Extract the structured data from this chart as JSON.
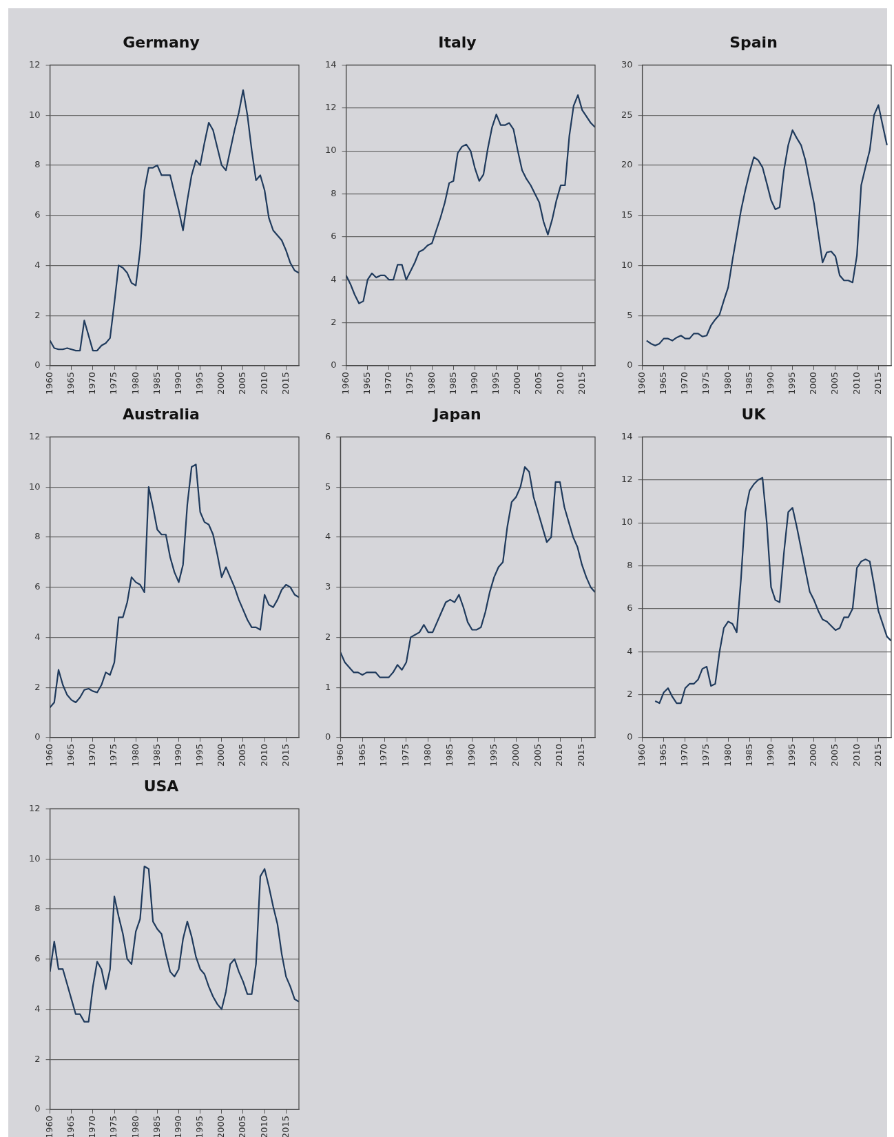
{
  "chart_data": [
    {
      "type": "line",
      "title": "Germany",
      "color": "#1f3a5c",
      "marker": "none",
      "grid": "y",
      "xlim": [
        1960,
        2018
      ],
      "xticks": [
        1960,
        1965,
        1970,
        1975,
        1980,
        1985,
        1990,
        1995,
        2000,
        2005,
        2010,
        2015
      ],
      "ylim": [
        0,
        12
      ],
      "yticks": [
        0,
        2,
        4,
        6,
        8,
        10,
        12
      ],
      "x": [
        1960,
        1961,
        1962,
        1963,
        1964,
        1965,
        1966,
        1967,
        1968,
        1969,
        1970,
        1971,
        1972,
        1973,
        1974,
        1975,
        1976,
        1977,
        1978,
        1979,
        1980,
        1981,
        1982,
        1983,
        1984,
        1985,
        1986,
        1987,
        1988,
        1989,
        1990,
        1991,
        1992,
        1993,
        1994,
        1995,
        1996,
        1997,
        1998,
        1999,
        2000,
        2001,
        2002,
        2003,
        2004,
        2005,
        2006,
        2007,
        2008,
        2009,
        2010,
        2011,
        2012,
        2013,
        2014,
        2015,
        2016,
        2017,
        2018
      ],
      "values": [
        1.0,
        0.7,
        0.65,
        0.65,
        0.7,
        0.65,
        0.6,
        0.6,
        1.8,
        1.2,
        0.6,
        0.6,
        0.8,
        0.9,
        1.1,
        2.5,
        4.0,
        3.9,
        3.7,
        3.3,
        3.2,
        4.6,
        7.0,
        7.9,
        7.9,
        8.0,
        7.6,
        7.6,
        7.6,
        6.9,
        6.2,
        5.4,
        6.6,
        7.6,
        8.2,
        8.0,
        8.9,
        9.7,
        9.4,
        8.7,
        8.0,
        7.8,
        8.6,
        9.4,
        10.1,
        11.0,
        10.0,
        8.6,
        7.4,
        7.6,
        7.0,
        5.9,
        5.4,
        5.2,
        5.0,
        4.6,
        4.1,
        3.8,
        3.7
      ]
    },
    {
      "type": "line",
      "title": "Italy",
      "color": "#1f3a5c",
      "marker": "none",
      "grid": "y",
      "xlim": [
        1960,
        2018
      ],
      "xticks": [
        1960,
        1965,
        1970,
        1975,
        1980,
        1985,
        1990,
        1995,
        2000,
        2005,
        2010,
        2015
      ],
      "ylim": [
        0,
        14
      ],
      "yticks": [
        0,
        2,
        4,
        6,
        8,
        10,
        12,
        14
      ],
      "x": [
        1960,
        1961,
        1962,
        1963,
        1964,
        1965,
        1966,
        1967,
        1968,
        1969,
        1970,
        1971,
        1972,
        1973,
        1974,
        1975,
        1976,
        1977,
        1978,
        1979,
        1980,
        1981,
        1982,
        1983,
        1984,
        1985,
        1986,
        1987,
        1988,
        1989,
        1990,
        1991,
        1992,
        1993,
        1994,
        1995,
        1996,
        1997,
        1998,
        1999,
        2000,
        2001,
        2002,
        2003,
        2004,
        2005,
        2006,
        2007,
        2008,
        2009,
        2010,
        2011,
        2012,
        2013,
        2014,
        2015,
        2016,
        2017,
        2018
      ],
      "values": [
        4.2,
        3.8,
        3.3,
        2.9,
        3.0,
        4.0,
        4.3,
        4.1,
        4.2,
        4.2,
        4.0,
        4.0,
        4.7,
        4.7,
        4.0,
        4.4,
        4.8,
        5.3,
        5.4,
        5.6,
        5.7,
        6.3,
        6.9,
        7.6,
        8.5,
        8.6,
        9.9,
        10.2,
        10.3,
        10.0,
        9.2,
        8.6,
        8.9,
        10.1,
        11.1,
        11.7,
        11.2,
        11.2,
        11.3,
        11.0,
        10.0,
        9.1,
        8.7,
        8.4,
        8.0,
        7.6,
        6.7,
        6.1,
        6.8,
        7.7,
        8.4,
        8.4,
        10.7,
        12.1,
        12.6,
        11.9,
        11.6,
        11.3,
        11.1
      ]
    },
    {
      "type": "line",
      "title": "Spain",
      "color": "#1f3a5c",
      "marker": "none",
      "grid": "y",
      "xlim": [
        1960,
        2018
      ],
      "xticks": [
        1960,
        1965,
        1970,
        1975,
        1980,
        1985,
        1990,
        1995,
        2000,
        2005,
        2010,
        2015
      ],
      "ylim": [
        0,
        30
      ],
      "yticks": [
        0,
        5,
        10,
        15,
        20,
        25,
        30
      ],
      "x": [
        1961,
        1962,
        1963,
        1964,
        1965,
        1966,
        1967,
        1968,
        1969,
        1970,
        1971,
        1972,
        1973,
        1974,
        1975,
        1976,
        1977,
        1978,
        1979,
        1980,
        1981,
        1982,
        1983,
        1984,
        1985,
        1986,
        1987,
        1988,
        1989,
        1990,
        1991,
        1992,
        1993,
        1994,
        1995,
        1996,
        1997,
        1998,
        1999,
        2000,
        2001,
        2002,
        2003,
        2004,
        2005,
        2006,
        2007,
        2008,
        2009,
        2010,
        2011,
        2012,
        2013,
        2014,
        2015,
        2016,
        2017
      ],
      "values": [
        2.5,
        2.2,
        2.0,
        2.2,
        2.7,
        2.7,
        2.5,
        2.8,
        3.0,
        2.7,
        2.7,
        3.2,
        3.2,
        2.9,
        3.0,
        4.0,
        4.6,
        5.1,
        6.5,
        7.8,
        10.5,
        13.0,
        15.5,
        17.5,
        19.3,
        20.8,
        20.5,
        19.8,
        18.2,
        16.5,
        15.6,
        15.8,
        19.5,
        22.0,
        23.5,
        22.7,
        22.0,
        20.5,
        18.3,
        16.2,
        13.2,
        10.3,
        11.3,
        11.4,
        10.9,
        9.0,
        8.5,
        8.5,
        8.3,
        11.0,
        18.0,
        19.8,
        21.5,
        25.0,
        26.0,
        24.0,
        22.0
      ]
    },
    {
      "type": "line",
      "title": "Australia",
      "color": "#1f3a5c",
      "marker": "none",
      "grid": "y",
      "xlim": [
        1960,
        2018
      ],
      "xticks": [
        1960,
        1965,
        1970,
        1975,
        1980,
        1985,
        1990,
        1995,
        2000,
        2005,
        2010,
        2015
      ],
      "ylim": [
        0,
        12
      ],
      "yticks": [
        0,
        2,
        4,
        6,
        8,
        10,
        12
      ],
      "x": [
        1960,
        1961,
        1962,
        1963,
        1964,
        1965,
        1966,
        1967,
        1968,
        1969,
        1970,
        1971,
        1972,
        1973,
        1974,
        1975,
        1976,
        1977,
        1978,
        1979,
        1980,
        1981,
        1982,
        1983,
        1984,
        1985,
        1986,
        1987,
        1988,
        1989,
        1990,
        1991,
        1992,
        1993,
        1994,
        1995,
        1996,
        1997,
        1998,
        1999,
        2000,
        2001,
        2002,
        2003,
        2004,
        2005,
        2006,
        2007,
        2008,
        2009,
        2010,
        2011,
        2012,
        2013,
        2014,
        2015,
        2016,
        2017,
        2018
      ],
      "values": [
        1.2,
        1.4,
        2.7,
        2.1,
        1.7,
        1.5,
        1.4,
        1.6,
        1.9,
        1.95,
        1.85,
        1.8,
        2.1,
        2.6,
        2.5,
        3.0,
        4.8,
        4.8,
        5.4,
        6.4,
        6.2,
        6.1,
        5.8,
        10.0,
        9.2,
        8.3,
        8.1,
        8.1,
        7.2,
        6.6,
        6.2,
        6.9,
        9.3,
        10.8,
        10.9,
        9.0,
        8.6,
        8.5,
        8.1,
        7.3,
        6.4,
        6.8,
        6.4,
        6.0,
        5.5,
        5.1,
        4.7,
        4.4,
        4.4,
        4.3,
        5.7,
        5.3,
        5.2,
        5.5,
        5.9,
        6.1,
        6.0,
        5.7,
        5.6
      ]
    },
    {
      "type": "line",
      "title": "Japan",
      "color": "#1f3a5c",
      "marker": "none",
      "grid": "y",
      "xlim": [
        1960,
        2018
      ],
      "xticks": [
        1960,
        1965,
        1970,
        1975,
        1980,
        1985,
        1990,
        1995,
        2000,
        2005,
        2010,
        2015
      ],
      "ylim": [
        0,
        6
      ],
      "yticks": [
        0,
        1,
        2,
        3,
        4,
        5,
        6
      ],
      "x": [
        1960,
        1961,
        1962,
        1963,
        1964,
        1965,
        1966,
        1967,
        1968,
        1969,
        1970,
        1971,
        1972,
        1973,
        1974,
        1975,
        1976,
        1977,
        1978,
        1979,
        1980,
        1981,
        1982,
        1983,
        1984,
        1985,
        1986,
        1987,
        1988,
        1989,
        1990,
        1991,
        1992,
        1993,
        1994,
        1995,
        1996,
        1997,
        1998,
        1999,
        2000,
        2001,
        2002,
        2003,
        2004,
        2005,
        2006,
        2007,
        2008,
        2009,
        2010,
        2011,
        2012,
        2013,
        2014,
        2015,
        2016,
        2017,
        2018
      ],
      "values": [
        1.7,
        1.5,
        1.4,
        1.3,
        1.3,
        1.25,
        1.3,
        1.3,
        1.3,
        1.2,
        1.2,
        1.2,
        1.3,
        1.45,
        1.35,
        1.5,
        2.0,
        2.05,
        2.1,
        2.25,
        2.1,
        2.1,
        2.3,
        2.5,
        2.7,
        2.75,
        2.7,
        2.85,
        2.6,
        2.3,
        2.15,
        2.15,
        2.2,
        2.5,
        2.9,
        3.2,
        3.4,
        3.5,
        4.2,
        4.7,
        4.8,
        5.0,
        5.4,
        5.3,
        4.8,
        4.5,
        4.2,
        3.9,
        4.0,
        5.1,
        5.1,
        4.6,
        4.3,
        4.0,
        3.8,
        3.45,
        3.2,
        3.0,
        2.9
      ]
    },
    {
      "type": "line",
      "title": "UK",
      "color": "#1f3a5c",
      "marker": "none",
      "grid": "y",
      "xlim": [
        1960,
        2018
      ],
      "xticks": [
        1960,
        1965,
        1970,
        1975,
        1980,
        1985,
        1990,
        1995,
        2000,
        2005,
        2010,
        2015
      ],
      "ylim": [
        0,
        14
      ],
      "yticks": [
        0,
        2,
        4,
        6,
        8,
        10,
        12,
        14
      ],
      "x": [
        1963,
        1964,
        1965,
        1966,
        1967,
        1968,
        1969,
        1970,
        1971,
        1972,
        1973,
        1974,
        1975,
        1976,
        1977,
        1978,
        1979,
        1980,
        1981,
        1982,
        1983,
        1984,
        1985,
        1986,
        1987,
        1988,
        1989,
        1990,
        1991,
        1992,
        1993,
        1994,
        1995,
        1996,
        1997,
        1998,
        1999,
        2000,
        2001,
        2002,
        2003,
        2004,
        2005,
        2006,
        2007,
        2008,
        2009,
        2010,
        2011,
        2012,
        2013,
        2014,
        2015,
        2016,
        2017,
        2018
      ],
      "values": [
        1.7,
        1.6,
        2.1,
        2.3,
        1.9,
        1.6,
        1.6,
        2.3,
        2.5,
        2.5,
        2.7,
        3.2,
        3.3,
        2.4,
        2.5,
        4.0,
        5.1,
        5.4,
        5.3,
        4.9,
        7.4,
        10.5,
        11.5,
        11.8,
        12.0,
        12.1,
        10.0,
        7.0,
        6.4,
        6.3,
        8.6,
        10.5,
        10.7,
        9.8,
        8.8,
        7.8,
        6.8,
        6.4,
        5.9,
        5.5,
        5.4,
        5.2,
        5.0,
        5.1,
        5.6,
        5.6,
        6.0,
        7.9,
        8.2,
        8.3,
        8.2,
        7.1,
        5.9,
        5.3,
        4.7,
        4.5
      ]
    },
    {
      "type": "line",
      "title": "USA",
      "color": "#1f3a5c",
      "marker": "none",
      "grid": "y",
      "xlim": [
        1960,
        2018
      ],
      "xticks": [
        1960,
        1965,
        1970,
        1975,
        1980,
        1985,
        1990,
        1995,
        2000,
        2005,
        2010,
        2015
      ],
      "ylim": [
        0,
        12
      ],
      "yticks": [
        0,
        2,
        4,
        6,
        8,
        10,
        12
      ],
      "x": [
        1960,
        1961,
        1962,
        1963,
        1964,
        1965,
        1966,
        1967,
        1968,
        1969,
        1970,
        1971,
        1972,
        1973,
        1974,
        1975,
        1976,
        1977,
        1978,
        1979,
        1980,
        1981,
        1982,
        1983,
        1984,
        1985,
        1986,
        1987,
        1988,
        1989,
        1990,
        1991,
        1992,
        1993,
        1994,
        1995,
        1996,
        1997,
        1998,
        1999,
        2000,
        2001,
        2002,
        2003,
        2004,
        2005,
        2006,
        2007,
        2008,
        2009,
        2010,
        2011,
        2012,
        2013,
        2014,
        2015,
        2016,
        2017,
        2018
      ],
      "values": [
        5.5,
        6.7,
        5.6,
        5.6,
        5.0,
        4.4,
        3.8,
        3.8,
        3.5,
        3.5,
        4.9,
        5.9,
        5.6,
        4.8,
        5.6,
        8.5,
        7.7,
        7.0,
        6.0,
        5.8,
        7.1,
        7.6,
        9.7,
        9.6,
        7.5,
        7.2,
        7.0,
        6.2,
        5.5,
        5.3,
        5.6,
        6.8,
        7.5,
        6.9,
        6.1,
        5.6,
        5.4,
        4.9,
        4.5,
        4.2,
        4.0,
        4.7,
        5.8,
        6.0,
        5.5,
        5.1,
        4.6,
        4.6,
        5.8,
        9.3,
        9.6,
        8.9,
        8.1,
        7.4,
        6.2,
        5.3,
        4.9,
        4.4,
        4.3
      ]
    }
  ]
}
